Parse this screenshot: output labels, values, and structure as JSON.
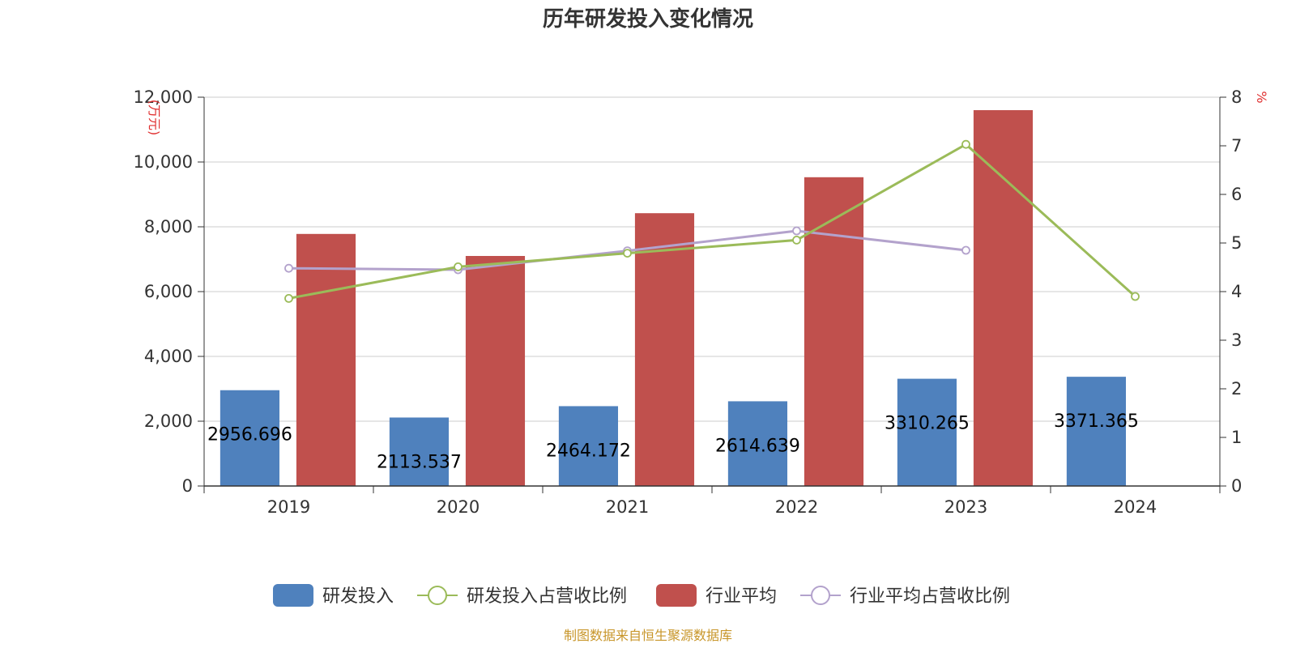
{
  "colors": {
    "rd": "#4f81bd",
    "industry": "#c0504d",
    "rd_ratio": "#9bbb59",
    "industry_ratio": "#b3a2cc",
    "grid": "#cccccc",
    "axis": "#333333",
    "unit": "#e03030",
    "source": "#c8962a"
  },
  "chart_data": {
    "type": "bar",
    "title": "历年研发投入变化情况",
    "y_left_unit": "(万元)",
    "y_right_unit": "%",
    "categories": [
      "2019",
      "2020",
      "2021",
      "2022",
      "2023",
      "2024"
    ],
    "y_left": {
      "min": 0,
      "max": 12000,
      "ticks": [
        "0",
        "2,000",
        "4,000",
        "6,000",
        "8,000",
        "10,000",
        "12,000"
      ]
    },
    "y_right": {
      "min": 0,
      "max": 8,
      "ticks": [
        "0",
        "1",
        "2",
        "3",
        "4",
        "5",
        "6",
        "7",
        "8"
      ]
    },
    "series": [
      {
        "name": "研发投入",
        "type": "bar",
        "axis": "left",
        "values": [
          2956.696,
          2113.537,
          2464.172,
          2614.639,
          3310.265,
          3371.365
        ],
        "labels": [
          "2956.696",
          "2113.537",
          "2464.172",
          "2614.639",
          "3310.265",
          "3371.365"
        ]
      },
      {
        "name": "研发投入占营收比例",
        "type": "line",
        "axis": "right",
        "values": [
          3.86,
          4.51,
          4.79,
          5.06,
          7.03,
          3.9
        ]
      },
      {
        "name": "行业平均",
        "type": "bar",
        "axis": "left",
        "values": [
          7780,
          7100,
          8420,
          9530,
          11600,
          null
        ]
      },
      {
        "name": "行业平均占营收比例",
        "type": "line",
        "axis": "right",
        "values": [
          4.48,
          4.45,
          4.84,
          5.25,
          4.85,
          null
        ]
      }
    ],
    "legend_position": "bottom",
    "grid": true
  },
  "source": "制图数据来自恒生聚源数据库"
}
